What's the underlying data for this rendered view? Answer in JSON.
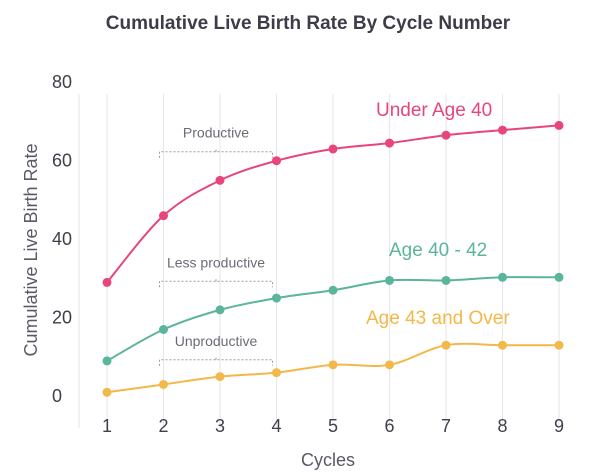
{
  "chart_data": {
    "type": "line",
    "title": "Cumulative Live Birth Rate By Cycle Number",
    "xlabel": "Cycles",
    "ylabel": "Cumulative Live Birth Rate",
    "x": [
      1,
      2,
      3,
      4,
      5,
      6,
      7,
      8,
      9
    ],
    "ylim": [
      0,
      80
    ],
    "yticks": [
      0,
      20,
      40,
      60,
      80
    ],
    "grid": "vertical",
    "series": [
      {
        "name": "Under Age 40",
        "color": "#e8457a",
        "values": [
          32,
          49,
          58,
          63,
          66,
          67.5,
          69.5,
          70.8,
          72
        ]
      },
      {
        "name": "Age 40 - 42",
        "color": "#5bb59a",
        "values": [
          12,
          20,
          25,
          28,
          30,
          32.5,
          32.5,
          33.3,
          33.3
        ]
      },
      {
        "name": "Age 43 and Over",
        "color": "#f2b84a",
        "values": [
          4,
          6,
          8,
          9,
          11,
          11,
          16,
          16,
          16
        ]
      }
    ],
    "annotations": [
      {
        "text": "Productive",
        "x_start": 2,
        "x_end": 4,
        "y": 63
      },
      {
        "text": "Less productive",
        "x_start": 2,
        "x_end": 4,
        "y": 30
      },
      {
        "text": "Unproductive",
        "x_start": 2,
        "x_end": 4,
        "y": 10
      }
    ]
  }
}
